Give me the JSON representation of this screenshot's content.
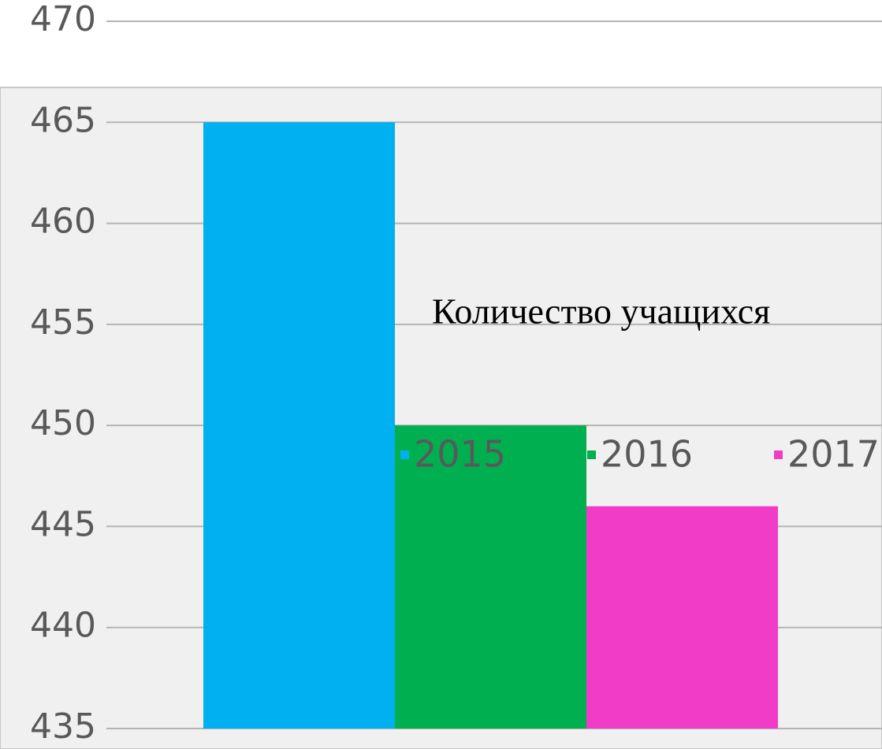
{
  "chart_data": {
    "type": "bar",
    "title": "Количество учащихся",
    "categories": [
      null
    ],
    "series": [
      {
        "name": "2015",
        "color": "#00b0f0",
        "values": [
          465
        ]
      },
      {
        "name": "2016",
        "color": "#00b050",
        "values": [
          450
        ]
      },
      {
        "name": "2017",
        "color": "#f03cc6",
        "values": [
          446
        ]
      }
    ],
    "ylim": [
      435,
      470
    ],
    "yticks": [
      435,
      440,
      445,
      450,
      455,
      460,
      465,
      470
    ],
    "grid": true
  }
}
